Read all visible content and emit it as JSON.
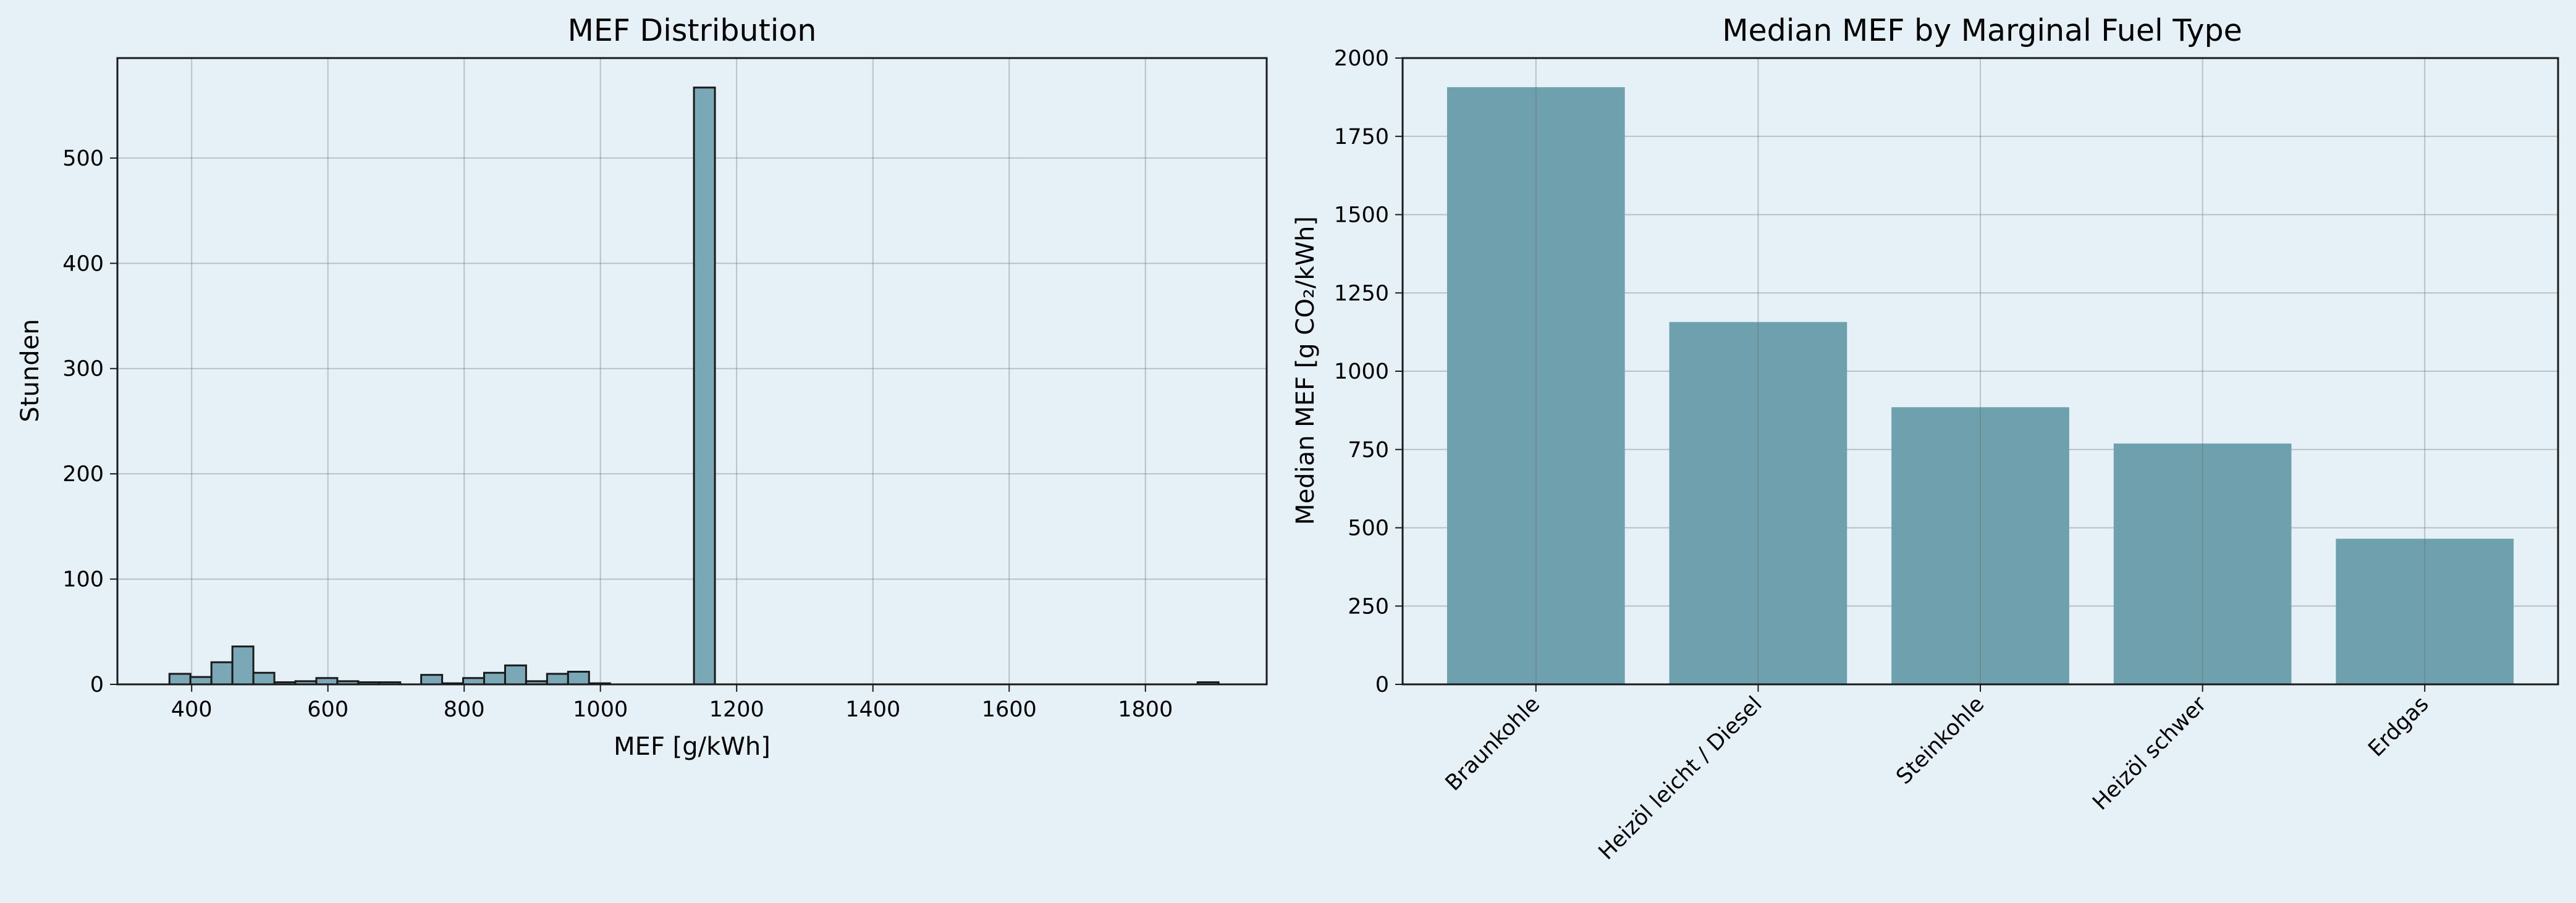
{
  "colors": {
    "figure_background": "#e5f0f7",
    "hist_fill": "#7aa8b7",
    "bar_fill": "#6fa0ae",
    "edge": "#1a1a1a",
    "grid": "#6b6b6b"
  },
  "chart_data": [
    {
      "type": "bar",
      "title": "MEF Distribution",
      "xlabel": "MEF [g/kWh]",
      "ylabel": "Stunden",
      "xlim": [
        291,
        1978
      ],
      "ylim": [
        0,
        595
      ],
      "xticks": [
        400,
        600,
        800,
        1000,
        1200,
        1400,
        1600,
        1800
      ],
      "yticks": [
        0,
        100,
        200,
        300,
        400,
        500
      ],
      "grid": true,
      "bin_width": 30.8,
      "bins": [
        {
          "x0": 367.4,
          "x1": 398.2,
          "count": 10
        },
        {
          "x0": 398.2,
          "x1": 429.0,
          "count": 7
        },
        {
          "x0": 429.0,
          "x1": 459.8,
          "count": 21
        },
        {
          "x0": 459.8,
          "x1": 490.6,
          "count": 36
        },
        {
          "x0": 490.6,
          "x1": 521.4,
          "count": 11
        },
        {
          "x0": 521.4,
          "x1": 552.2,
          "count": 2
        },
        {
          "x0": 552.2,
          "x1": 583.0,
          "count": 3
        },
        {
          "x0": 583.0,
          "x1": 613.8,
          "count": 6
        },
        {
          "x0": 613.8,
          "x1": 644.6,
          "count": 3
        },
        {
          "x0": 644.6,
          "x1": 675.4,
          "count": 2
        },
        {
          "x0": 675.4,
          "x1": 706.2,
          "count": 2
        },
        {
          "x0": 736.9,
          "x1": 767.7,
          "count": 9
        },
        {
          "x0": 767.7,
          "x1": 798.5,
          "count": 1
        },
        {
          "x0": 798.5,
          "x1": 829.3,
          "count": 6
        },
        {
          "x0": 829.3,
          "x1": 860.1,
          "count": 11
        },
        {
          "x0": 860.1,
          "x1": 890.9,
          "count": 18
        },
        {
          "x0": 890.9,
          "x1": 921.7,
          "count": 3
        },
        {
          "x0": 921.7,
          "x1": 952.5,
          "count": 10
        },
        {
          "x0": 952.5,
          "x1": 983.3,
          "count": 12
        },
        {
          "x0": 983.3,
          "x1": 1014.1,
          "count": 1
        },
        {
          "x0": 1137.3,
          "x1": 1168.1,
          "count": 567
        },
        {
          "x0": 1876.6,
          "x1": 1907.4,
          "count": 2
        }
      ]
    },
    {
      "type": "bar",
      "title": "Median MEF by Marginal Fuel Type",
      "xlabel": "",
      "ylabel": "Median MEF [g CO₂/kWh]",
      "ylim": [
        0,
        2000
      ],
      "yticks": [
        0,
        250,
        500,
        750,
        1000,
        1250,
        1500,
        1750,
        2000
      ],
      "grid": true,
      "categories": [
        "Braunkohle",
        "Heizöl leicht / Diesel",
        "Steinkohle",
        "Heizöl schwer",
        "Erdgas"
      ],
      "values": [
        1907,
        1157,
        885,
        769,
        465
      ]
    }
  ]
}
